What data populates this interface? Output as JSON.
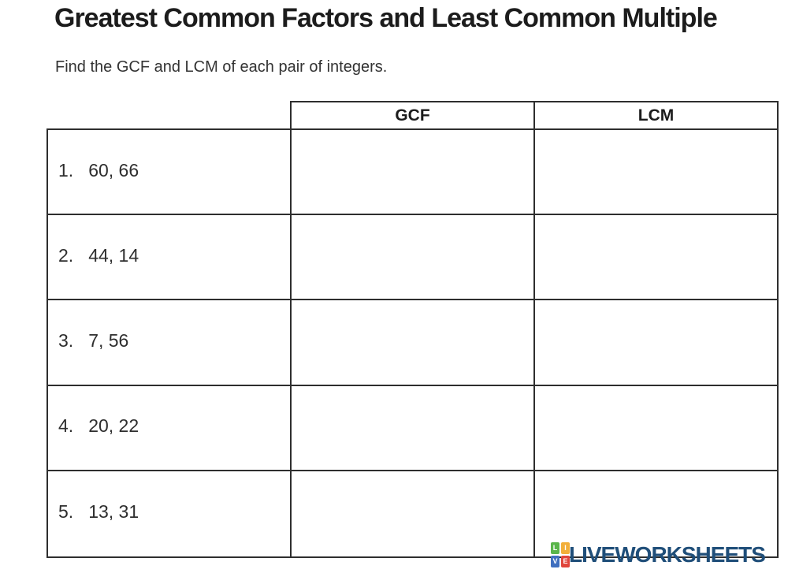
{
  "page": {
    "title": "Greatest Common Factors and Least Common Multiple",
    "instruction": "Find the GCF and LCM of each pair of integers."
  },
  "table": {
    "col_headers": {
      "gcf": "GCF",
      "lcm": "LCM"
    },
    "rows": [
      {
        "index": "1.",
        "pair": "60, 66",
        "gcf_answer": "",
        "lcm_answer": ""
      },
      {
        "index": "2.",
        "pair": "44, 14",
        "gcf_answer": "",
        "lcm_answer": ""
      },
      {
        "index": "3.",
        "pair": "7, 56",
        "gcf_answer": "",
        "lcm_answer": ""
      },
      {
        "index": "4.",
        "pair": "20, 22",
        "gcf_answer": "",
        "lcm_answer": ""
      },
      {
        "index": "5.",
        "pair": "13, 31",
        "gcf_answer": "",
        "lcm_answer": ""
      }
    ]
  },
  "logo": {
    "text": "LIVEWORKSHEETS",
    "text_color": "#1f4e79",
    "tiles": [
      {
        "letter": "L",
        "color": "#5ab54b"
      },
      {
        "letter": "I",
        "color": "#f2af3a"
      },
      {
        "letter": "V",
        "color": "#3f6fbf"
      },
      {
        "letter": "E",
        "color": "#e0453c"
      }
    ]
  },
  "colors": {
    "border": "#2e2e2e",
    "text": "#2b2b2b",
    "background": "#ffffff"
  }
}
